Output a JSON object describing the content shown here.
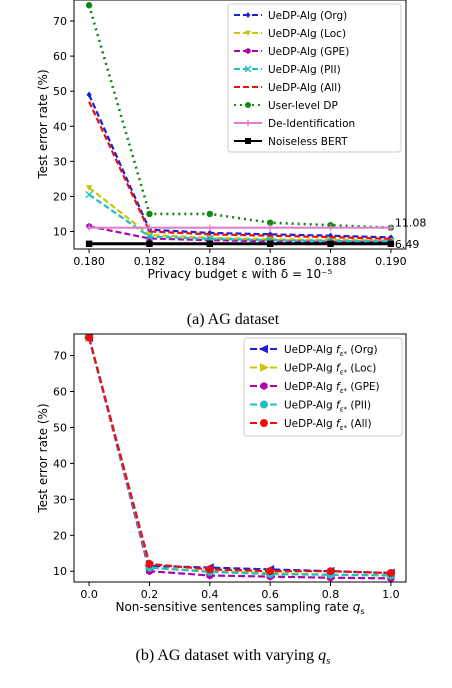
{
  "chart_data": [
    {
      "type": "line",
      "title": "",
      "caption": "(a) AG dataset",
      "xlabel": "Privacy budget ε with δ = 10⁻⁵",
      "ylabel": "Test error rate (%)",
      "xlim": [
        0.1795,
        0.1905
      ],
      "ylim": [
        5,
        76
      ],
      "xticks": [
        0.18,
        0.182,
        0.184,
        0.186,
        0.188,
        0.19
      ],
      "xtick_labels": [
        "0.180",
        "0.182",
        "0.184",
        "0.186",
        "0.188",
        "0.190"
      ],
      "yticks": [
        10,
        20,
        30,
        40,
        50,
        60,
        70
      ],
      "ytick_labels": [
        "10",
        "20",
        "30",
        "40",
        "50",
        "60",
        "70"
      ],
      "grid": false,
      "legend_position": "top-right",
      "x": [
        0.18,
        0.182,
        0.184,
        0.186,
        0.188,
        0.19
      ],
      "series": [
        {
          "name": "UeDP-Alg (Org)",
          "color": "#1f1fd6",
          "dash": "6,3",
          "marker": "diamond",
          "values": [
            49,
            10.5,
            9.6,
            9.2,
            8.8,
            8.3
          ]
        },
        {
          "name": "UeDP-Alg (Loc)",
          "color": "#c8c800",
          "dash": "6,3",
          "marker": "tri",
          "values": [
            22.5,
            9.0,
            8.2,
            7.8,
            7.6,
            7.4
          ]
        },
        {
          "name": "UeDP-Alg (GPE)",
          "color": "#b000b0",
          "dash": "6,3",
          "marker": "hex",
          "values": [
            11.5,
            8.0,
            7.5,
            7.2,
            7.0,
            7.0
          ]
        },
        {
          "name": "UeDP-Alg (PII)",
          "color": "#20c0c0",
          "dash": "6,3",
          "marker": "x",
          "values": [
            20.5,
            8.5,
            7.9,
            7.5,
            7.3,
            7.2
          ]
        },
        {
          "name": "UeDP-Alg (All)",
          "color": "#e81010",
          "dash": "6,3",
          "marker": "none",
          "values": [
            47,
            10,
            9.2,
            8.8,
            8.4,
            7.9
          ]
        },
        {
          "name": "User-level DP",
          "color": "#118811",
          "dash": "2,4",
          "marker": "circle",
          "values": [
            74.5,
            15,
            15,
            12.5,
            11.8,
            11.08
          ]
        },
        {
          "name": "De-Identification",
          "color": "#e080d0",
          "dash": "",
          "marker": "plus",
          "values": [
            11.08,
            11.08,
            11.08,
            11.08,
            11.08,
            11.08
          ]
        },
        {
          "name": "Noiseless BERT",
          "color": "#000000",
          "dash": "",
          "marker": "square",
          "values": [
            6.49,
            6.49,
            6.49,
            6.49,
            6.49,
            6.49
          ]
        }
      ],
      "annotations": [
        {
          "text": "11.08",
          "x": 0.19,
          "y": 11.08
        },
        {
          "text": "6.49",
          "x": 0.19,
          "y": 6.49
        }
      ]
    },
    {
      "type": "line",
      "title": "",
      "caption": "(b) AG dataset with varying q_s",
      "caption_main": "(b) AG dataset with varying ",
      "caption_var": "q",
      "caption_sub": "s",
      "xlabel": "Non-sensitive sentences sampling rate q_s",
      "xlabel_main": "Non-sensitive sentences sampling rate ",
      "xlabel_var": "q",
      "xlabel_sub": "s",
      "ylabel": "Test error rate (%)",
      "xlim": [
        -0.05,
        1.05
      ],
      "ylim": [
        7,
        76
      ],
      "xticks": [
        0.0,
        0.2,
        0.4,
        0.6,
        0.8,
        1.0
      ],
      "xtick_labels": [
        "0.0",
        "0.2",
        "0.4",
        "0.6",
        "0.8",
        "1.0"
      ],
      "yticks": [
        10,
        20,
        30,
        40,
        50,
        60,
        70
      ],
      "ytick_labels": [
        "10",
        "20",
        "30",
        "40",
        "50",
        "60",
        "70"
      ],
      "grid": false,
      "legend_position": "top-right",
      "x": [
        0.0,
        0.2,
        0.4,
        0.6,
        0.8,
        1.0
      ],
      "series": [
        {
          "name": "UeDP-Alg f_{ε*} (Org)",
          "main": "UeDP-Alg ",
          "sub": "ε*",
          "f": "f",
          "tail": " (Org)",
          "color": "#1f1fd6",
          "dash": "7,3",
          "marker": "tri-left",
          "values": [
            75,
            11.5,
            11,
            10.5,
            10,
            9.5
          ]
        },
        {
          "name": "UeDP-Alg f_{ε*} (Loc)",
          "main": "UeDP-Alg ",
          "sub": "ε*",
          "f": "f",
          "tail": " (Loc)",
          "color": "#c8c800",
          "dash": "7,3",
          "marker": "tri-right",
          "values": [
            75,
            11,
            10,
            9.5,
            9,
            9
          ]
        },
        {
          "name": "UeDP-Alg f_{ε*} (GPE)",
          "main": "UeDP-Alg ",
          "sub": "ε*",
          "f": "f",
          "tail": " (GPE)",
          "color": "#b000b0",
          "dash": "7,3",
          "marker": "hex",
          "values": [
            75,
            10,
            8.8,
            8.5,
            8.2,
            8
          ]
        },
        {
          "name": "UeDP-Alg f_{ε*} (PII)",
          "main": "UeDP-Alg ",
          "sub": "ε*",
          "f": "f",
          "tail": " (PII)",
          "color": "#20c0c0",
          "dash": "7,3",
          "marker": "circle",
          "values": [
            75,
            11,
            9.8,
            9.2,
            9,
            8.8
          ]
        },
        {
          "name": "UeDP-Alg f_{ε*} (All)",
          "main": "UeDP-Alg ",
          "sub": "ε*",
          "f": "f",
          "tail": " (All)",
          "color": "#e81010",
          "dash": "7,3",
          "marker": "circle",
          "values": [
            75,
            12,
            10.5,
            10,
            10,
            9.5
          ]
        }
      ]
    }
  ]
}
